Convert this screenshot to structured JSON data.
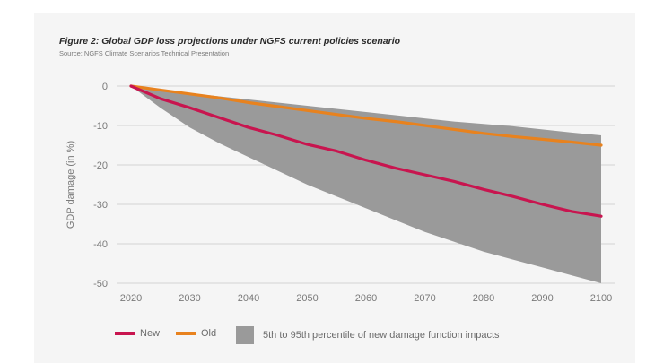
{
  "figure": {
    "title": "Figure 2: Global GDP loss projections under NGFS current policies scenario",
    "source": "Source: NGFS Climate Scenarios Technical Presentation"
  },
  "colors": {
    "new": "#c8154f",
    "old": "#e8821e",
    "band": "#9a9a9a",
    "grid": "#d2d2d2",
    "background": "#f5f5f5"
  },
  "chart_data": {
    "type": "line",
    "ylabel": "GDP damage (in %)",
    "xlabel": "",
    "xlim": [
      2020,
      2100
    ],
    "ylim": [
      -50,
      0
    ],
    "xticks": [
      2020,
      2030,
      2040,
      2050,
      2060,
      2070,
      2080,
      2090,
      2100
    ],
    "yticks": [
      0,
      -10,
      -20,
      -30,
      -40,
      -50
    ],
    "grid": true,
    "legend_position": "bottom",
    "x": [
      2020,
      2025,
      2030,
      2035,
      2040,
      2045,
      2050,
      2055,
      2060,
      2065,
      2070,
      2075,
      2080,
      2085,
      2090,
      2095,
      2100
    ],
    "series": [
      {
        "name": "New",
        "values": [
          0,
          -3.2,
          -5.5,
          -8.0,
          -10.5,
          -12.5,
          -14.8,
          -16.5,
          -18.8,
          -20.8,
          -22.5,
          -24.2,
          -26.2,
          -28.0,
          -30.0,
          -31.8,
          -33.0
        ]
      },
      {
        "name": "Old",
        "values": [
          0,
          -1.0,
          -2.0,
          -3.0,
          -4.2,
          -5.2,
          -6.2,
          -7.2,
          -8.2,
          -9.0,
          -10.0,
          -11.0,
          -12.0,
          -12.8,
          -13.5,
          -14.2,
          -15.0
        ]
      }
    ],
    "band": {
      "name": "5th to 95th percentile of new damage function impacts",
      "upper": [
        0,
        -1.0,
        -1.8,
        -2.6,
        -3.4,
        -4.2,
        -5.0,
        -5.8,
        -6.6,
        -7.4,
        -8.2,
        -9.0,
        -9.6,
        -10.2,
        -11.0,
        -11.8,
        -12.5
      ],
      "lower": [
        0,
        -5.5,
        -10.5,
        -14.5,
        -18.0,
        -21.5,
        -25.0,
        -28.0,
        -31.0,
        -34.0,
        -37.0,
        -39.5,
        -42.0,
        -44.0,
        -46.0,
        -48.0,
        -50.0
      ]
    }
  }
}
